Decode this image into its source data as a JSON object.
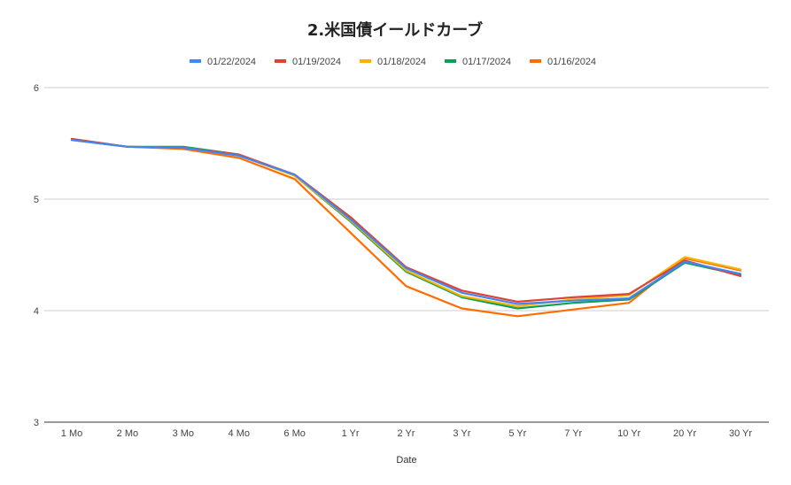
{
  "chart_data": {
    "type": "line",
    "title": "2.米国債イールドカーブ",
    "xlabel": "Date",
    "ylabel": "",
    "categories": [
      "1 Mo",
      "2 Mo",
      "3 Mo",
      "4 Mo",
      "6 Mo",
      "1 Yr",
      "2 Yr",
      "3 Yr",
      "5 Yr",
      "7 Yr",
      "10 Yr",
      "20 Yr",
      "30 Yr"
    ],
    "ylim": [
      3,
      6
    ],
    "yticks": [
      "3",
      "4",
      "5",
      "6"
    ],
    "grid": true,
    "legend_position": "top",
    "series": [
      {
        "name": "01/22/2024",
        "color": "#4285f4",
        "values": [
          5.53,
          5.47,
          5.46,
          5.39,
          5.22,
          4.82,
          4.38,
          4.16,
          4.06,
          4.09,
          4.11,
          4.44,
          4.33
        ]
      },
      {
        "name": "01/19/2024",
        "color": "#db4437",
        "values": [
          5.54,
          5.47,
          5.46,
          5.4,
          5.22,
          4.84,
          4.39,
          4.18,
          4.08,
          4.12,
          4.15,
          4.45,
          4.31
        ]
      },
      {
        "name": "01/18/2024",
        "color": "#f4b400",
        "values": [
          5.53,
          5.47,
          5.46,
          5.39,
          5.21,
          4.81,
          4.36,
          4.13,
          4.04,
          4.1,
          4.14,
          4.48,
          4.37
        ]
      },
      {
        "name": "01/17/2024",
        "color": "#0f9d58",
        "values": [
          5.53,
          5.47,
          5.47,
          5.4,
          5.21,
          4.8,
          4.35,
          4.12,
          4.02,
          4.07,
          4.1,
          4.43,
          4.32
        ]
      },
      {
        "name": "01/16/2024",
        "color": "#ff6d01",
        "values": [
          5.54,
          5.47,
          5.45,
          5.37,
          5.18,
          4.7,
          4.22,
          4.02,
          3.95,
          4.01,
          4.07,
          4.47,
          4.36
        ]
      }
    ]
  }
}
